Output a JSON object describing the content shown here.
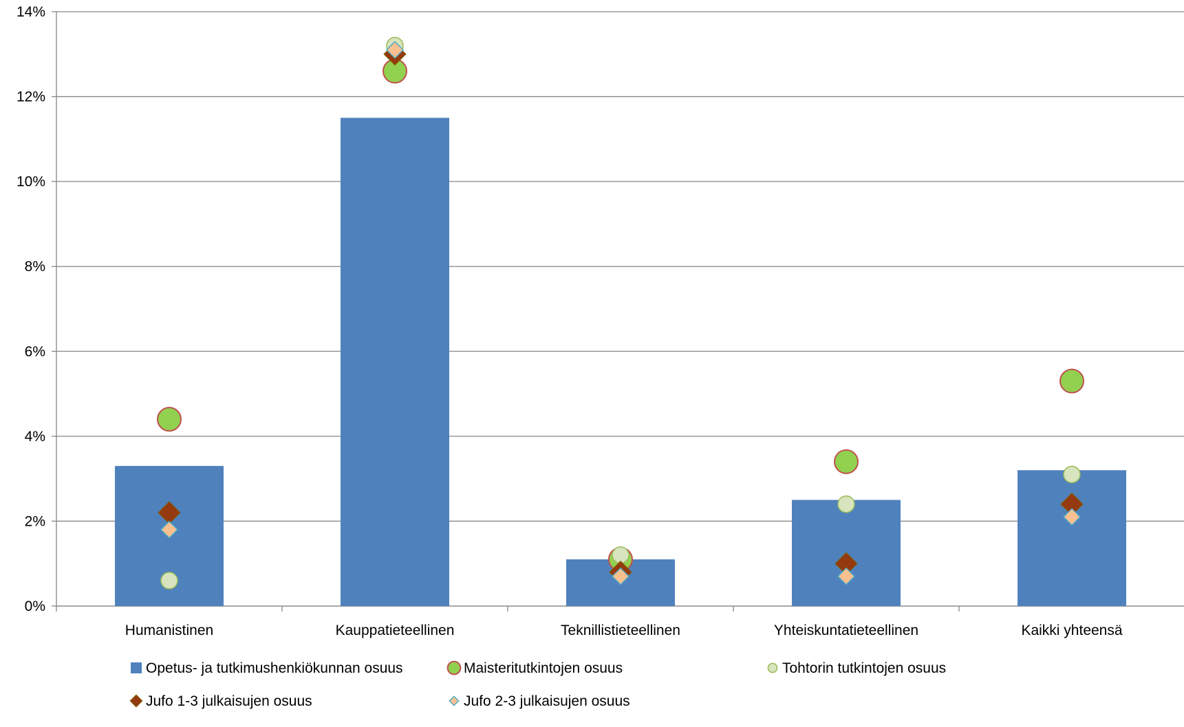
{
  "chart_data": {
    "type": "bar",
    "title": "",
    "xlabel": "",
    "ylabel": "",
    "ylim": [
      0,
      14
    ],
    "y_tick_step": 2,
    "y_tick_labels": [
      "0%",
      "2%",
      "4%",
      "6%",
      "8%",
      "10%",
      "12%",
      "14%"
    ],
    "grid": true,
    "legend_position": "bottom",
    "categories": [
      "Humanistinen",
      "Kauppatieteellinen",
      "Teknillistieteellinen",
      "Yhteiskuntatieteellinen",
      "Kaikki yhteensä"
    ],
    "series": [
      {
        "name": "Opetus- ja tutkimushenkiökunnan osuus",
        "kind": "bar",
        "marker": "square",
        "color": "#4F81BD",
        "values": [
          3.3,
          11.5,
          1.1,
          2.5,
          3.2
        ]
      },
      {
        "name": "Maisteritutkintojen osuus",
        "kind": "marker",
        "marker": "circle-large",
        "color": "#92D050",
        "stroke": "#C0504D",
        "values": [
          4.4,
          12.6,
          1.1,
          3.4,
          5.3
        ]
      },
      {
        "name": "Tohtorin tutkintojen osuus",
        "kind": "marker",
        "marker": "circle",
        "color": "#D7E4BD",
        "stroke": "#9BBB59",
        "values": [
          0.6,
          13.2,
          1.2,
          2.4,
          3.1
        ]
      },
      {
        "name": "Jufo 1-3 julkaisujen osuus",
        "kind": "marker",
        "marker": "diamond-large",
        "color": "#943A0E",
        "stroke": "#7F6000",
        "values": [
          2.2,
          13.0,
          0.8,
          1.0,
          2.4
        ]
      },
      {
        "name": "Jufo 2-3 julkaisujen osuus",
        "kind": "marker",
        "marker": "diamond",
        "color": "#FAC090",
        "stroke": "#4BACC6",
        "values": [
          1.8,
          13.1,
          0.7,
          0.7,
          2.1
        ]
      }
    ]
  }
}
